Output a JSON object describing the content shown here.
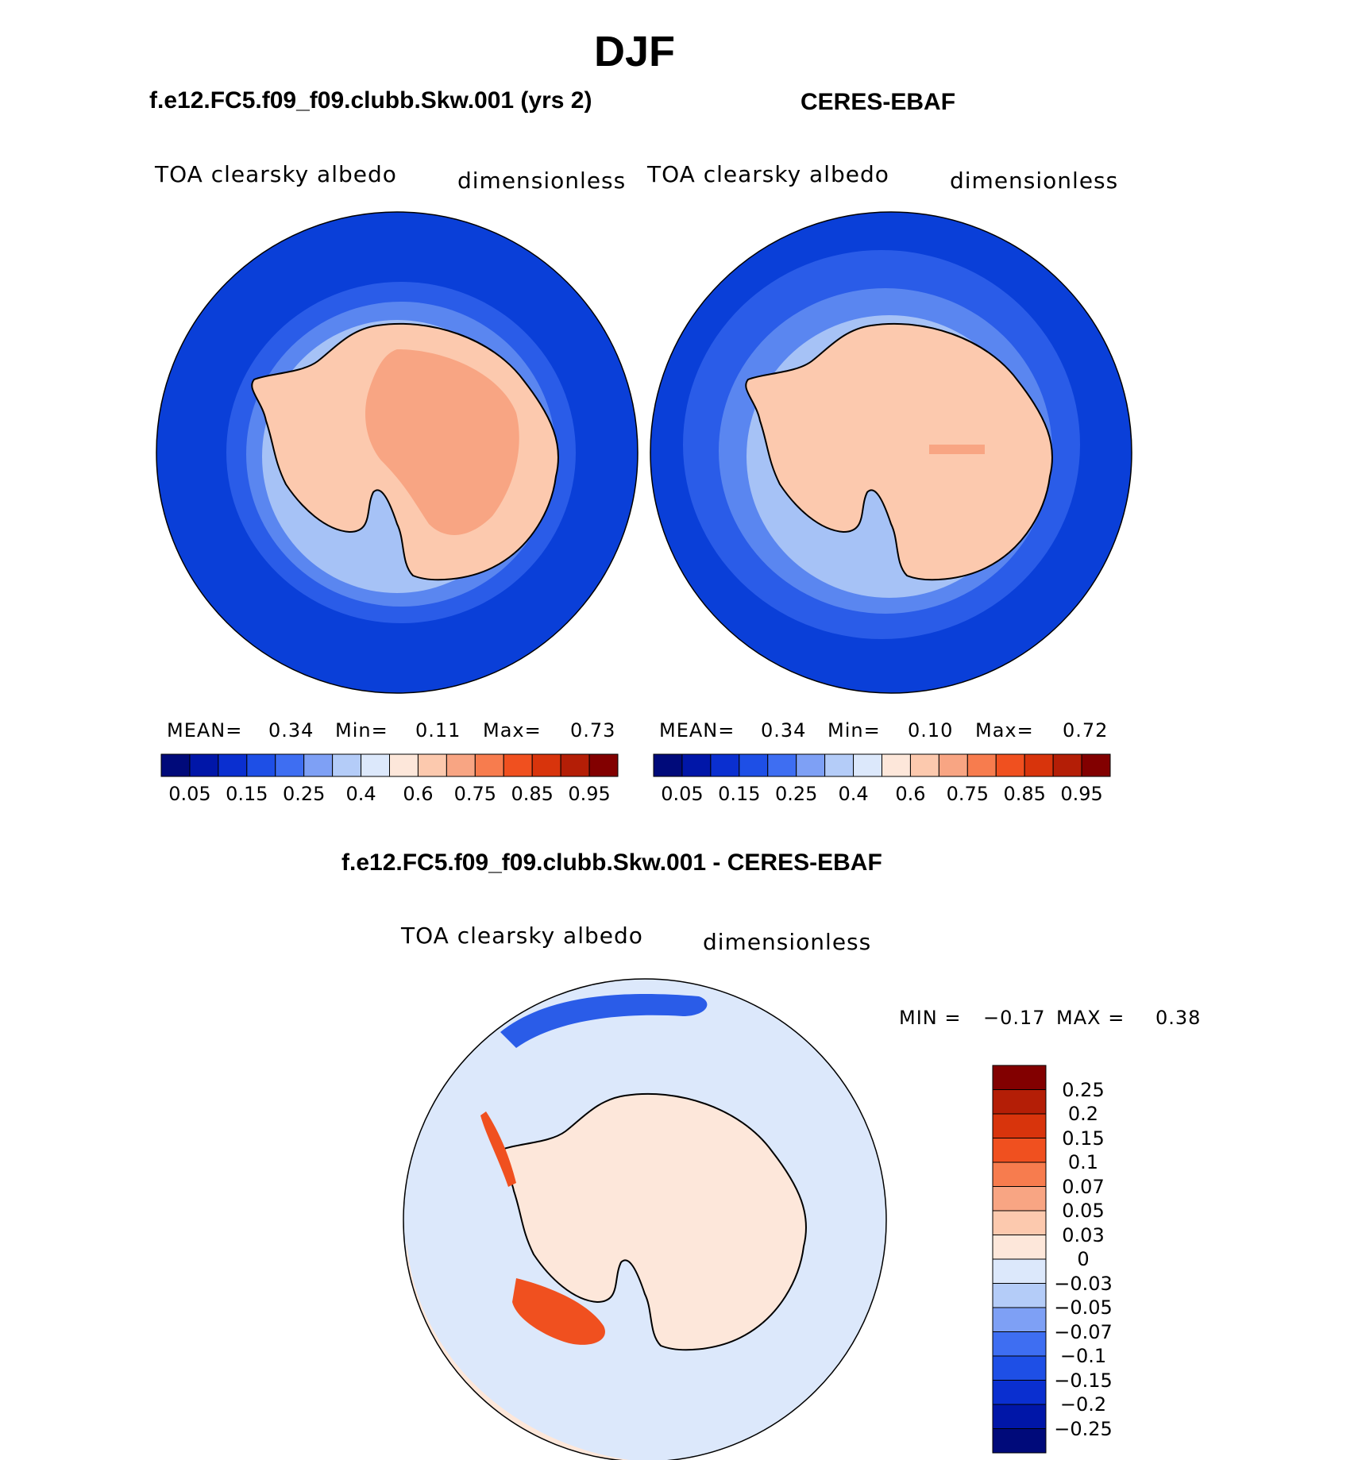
{
  "page": {
    "season": "DJF",
    "model_title": "f.e12.FC5.f09_f09.clubb.Skw.001 (yrs 2)",
    "obs_title": "CERES-EBAF",
    "diff_title": "f.e12.FC5.f09_f09.clubb.Skw.001 - CERES-EBAF"
  },
  "panels": [
    {
      "id": "model",
      "variable": "TOA clearsky albedo",
      "units": "dimensionless",
      "stats": {
        "mean_label": "MEAN=",
        "mean": "0.34",
        "min_label": "Min=",
        "min": "0.11",
        "max_label": "Max=",
        "max": "0.73"
      }
    },
    {
      "id": "obs",
      "variable": "TOA clearsky albedo",
      "units": "dimensionless",
      "stats": {
        "mean_label": "MEAN=",
        "mean": "0.34",
        "min_label": "Min=",
        "min": "0.10",
        "max_label": "Max=",
        "max": "0.72"
      }
    },
    {
      "id": "diff",
      "variable": "TOA clearsky albedo",
      "units": "dimensionless",
      "stats": {
        "min_label": "MIN =",
        "min": "−0.17",
        "max_label": "MAX =",
        "max": "0.38"
      }
    }
  ],
  "colorbar_abs": {
    "colors": [
      "#000a7a",
      "#0016a8",
      "#0a2fd0",
      "#1e4fe6",
      "#3e6ef2",
      "#7ea0f5",
      "#b4ccf8",
      "#dce8fb",
      "#fde7da",
      "#fcc9ae",
      "#f8a583",
      "#f77c4e",
      "#f0501f",
      "#d8340c",
      "#b41e06",
      "#820000"
    ],
    "tick_labels": [
      "0.05",
      "0.15",
      "0.25",
      "0.4",
      "0.6",
      "0.75",
      "0.85",
      "0.95"
    ]
  },
  "colorbar_diff": {
    "colors": [
      "#820000",
      "#b41e06",
      "#d8340c",
      "#f0501f",
      "#f77c4e",
      "#f8a583",
      "#fcc9ae",
      "#fde7da",
      "#dce8fb",
      "#b4ccf8",
      "#7ea0f5",
      "#3e6ef2",
      "#1e4fe6",
      "#0a2fd0",
      "#0016a8",
      "#000a7a"
    ],
    "tick_labels": [
      "0.25",
      "0.2",
      "0.15",
      "0.1",
      "0.07",
      "0.05",
      "0.03",
      "0",
      "−0.03",
      "−0.05",
      "−0.07",
      "−0.1",
      "−0.15",
      "−0.2",
      "−0.25"
    ]
  },
  "map_colors": {
    "ocean": "#0a3fd8",
    "ice1": "#2a5ce8",
    "ice2": "#5a86f0",
    "ice3": "#a6c2f6",
    "ice4": "#dce8fb",
    "land": "#fcc9ae",
    "land_high": "#f8a583",
    "diff_pos": "#fde7da",
    "diff_neg": "#dce8fb",
    "diff_red": "#f0501f",
    "diff_blue": "#2a5ce8"
  }
}
